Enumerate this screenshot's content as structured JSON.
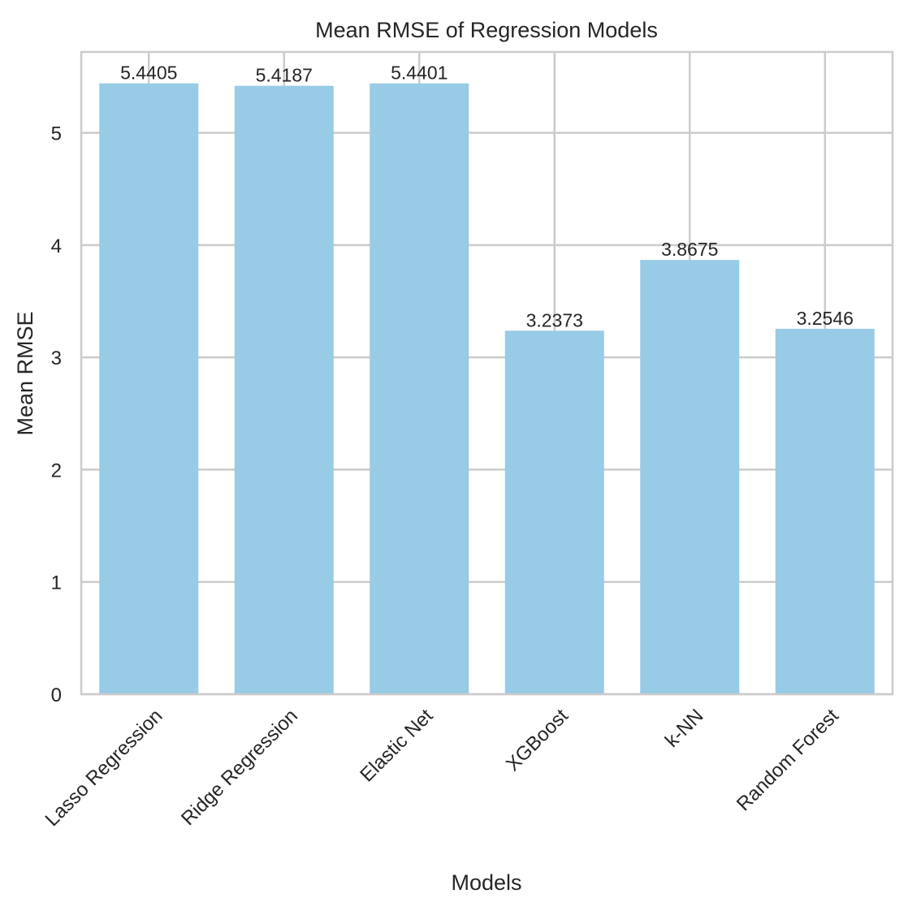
{
  "chart_data": {
    "type": "bar",
    "title": "Mean RMSE of Regression Models",
    "xlabel": "Models",
    "ylabel": "Mean RMSE",
    "categories": [
      "Lasso Regression",
      "Ridge Regression",
      "Elastic Net",
      "XGBoost",
      "k-NN",
      "Random Forest"
    ],
    "values": [
      5.4405,
      5.4187,
      5.4401,
      3.2373,
      3.8675,
      3.2546
    ],
    "value_labels": [
      "5.4405",
      "5.4187",
      "5.4401",
      "3.2373",
      "3.8675",
      "3.2546"
    ],
    "ylim": [
      0,
      5.72
    ],
    "yticks": [
      0,
      1,
      2,
      3,
      4,
      5
    ],
    "ytick_labels": [
      "0",
      "1",
      "2",
      "3",
      "4",
      "5"
    ],
    "grid": true,
    "x_tick_rotation_deg": 45,
    "bar_color": "#97cbe6",
    "grid_color": "#cccccc",
    "frame_color": "#cccccc",
    "text_color": "#262626"
  }
}
